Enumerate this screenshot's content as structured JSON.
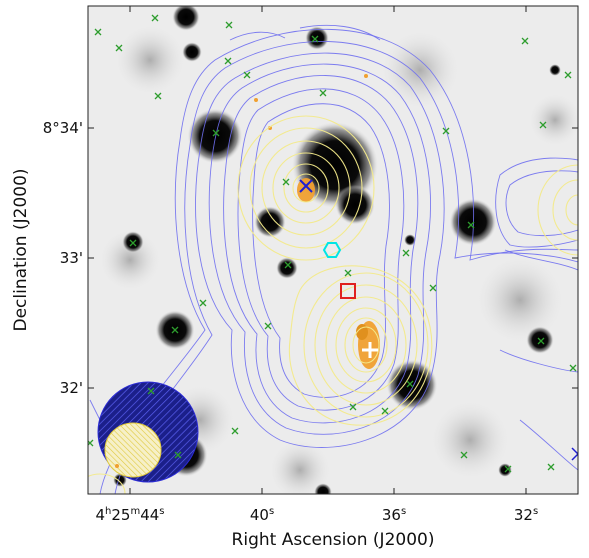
{
  "figure": {
    "xlabel": "Right Ascension (J2000)",
    "ylabel": "Declination (J2000)",
    "x_ticks": [
      {
        "label": "4h25m44s",
        "ra_seconds": 44
      },
      {
        "label": "40s",
        "ra_seconds": 40
      },
      {
        "label": "36s",
        "ra_seconds": 36
      },
      {
        "label": "32s",
        "ra_seconds": 32
      }
    ],
    "y_ticks": [
      {
        "label": "8°34'",
        "dec_arcmin": 34
      },
      {
        "label": "33'",
        "dec_arcmin": 33
      },
      {
        "label": "32'",
        "dec_arcmin": 32
      }
    ],
    "colors": {
      "contour_outer": "#6f6ff0",
      "contour_inner": "#f3ea8a",
      "source_marker": "#2e9d2e",
      "box_marker": "#e02020",
      "hex_marker": "#00e5e5",
      "cross_marker": "#2020d0",
      "plus_marker": "#ffffff",
      "beam_outer": "#2b2bd6",
      "beam_inner": "#f2e36b"
    },
    "markers": {
      "source_symbol": "×",
      "box": "red-square",
      "hexagon": "cyan-hexagon",
      "cross": "blue-cross",
      "plus": "white-plus"
    }
  }
}
